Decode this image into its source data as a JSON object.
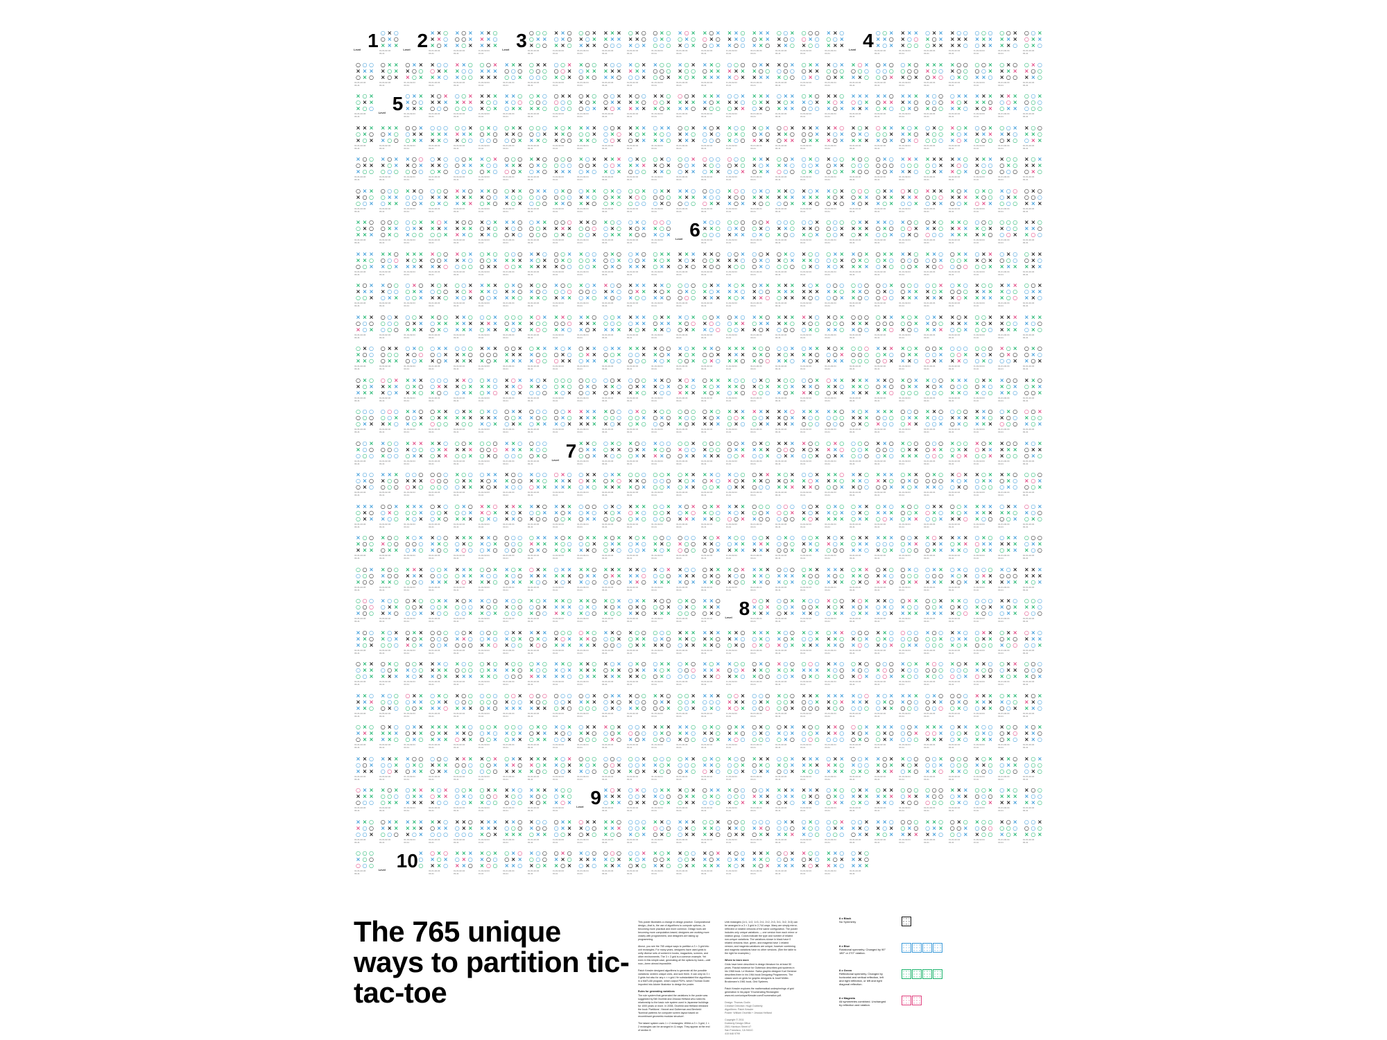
{
  "title": "The 765 unique ways to partition tic-tac-toe",
  "columns": [
    "This poster illustrates a change in design practice. Computational design—that is, the use of algorithms to compute options—is becoming more practical and more common. Design tools are becoming more computation-based; designers are working more closely with programmers; and designers are taking up programming.",
    "Above, you see the 765 unique ways to partition a 3 × 3 grid into unit rectangles. For many years, designers have used grids to unify diverse sets of content in books, magazines, screens, and other environments. The 3 × 3 grid is a common example. Yet even in this simple case, generating all the options by hand—until now—been almost impossible.",
    "Patch Kessler designed algorithms to generate all the possible variations: sixteen unique ones, and sum them. It can only do 3 × 3 grids but also for any n × n grid. He substantiated the algorithms in a MATLAB program, which output PDFs, which Thomas Godin imported into Adobe Illustrator to design the poster.",
    "Rules for generating variations",
    "The rule system that generated the variations in the poster was suggested by Bill Orcehild and Jessica Helfand who noted its relationship to the basic rule system used in Japanese buildings for 1000 years or more. In 2008, Orcehild and Helfand released the book 'Partitions'. Hexnet and Gutterman and Benheld: 'Nominal patterns for computer screen layout based on recombinant geometric modular structure'.",
    "The tatami system uses 1 × 2 rectangles. Within a 3 × 3 grid, 1 × 2 rectangles can be arranged in 11 ways. They appear at the end of section 8.",
    "Unit rectangles (1×1, 1×2, 1×3, 2×1, 2×2, 2×3, 3×1, 3×2, 3×3) can be arranged in a 3 × 3 grid in 2,744 ways. Many are simply mirror-reflected or rotated versions of the same configuration. The poster includes only unique variations — one version from each mirror or rotation group. Colors indicate the type and number of related non-unique variations. The variations shown in black have 0 related versions; blue, green, and magenta have 1 related version; and magenta variations are unique; however combining and magenta variations have no other versions. (See the table to the right for examples.)",
    "Where to learn more",
    "Grids have been described in design literature for at least 50 years. Fractal evidence for Gutterson describes grid systems in his 1968 book. Le Modulor: Swiss graphic designer Karl Gerstner describes them in his 1964 book Designing Programmes. The classic work on grids for graphic designers is Josef Müller-Brockmann's 1981 book, Grid Systems.",
    "Patch Kessler explores the mathematical underpinnings of grid generation in his paper 'Enumerating Rectangles' www.exi.com/unique/Kessler.com/Enumeration.pdf.",
    "Design: Thomas Godin\nCreative Direction: Hugh Dubberly\nAlgorithms: Patch Kessler\nPoster: William Orcehild + Jessica Helfand",
    "Copyright © 2011\nDubberly Design Office\n2501 Harrison Street #7\nSan Francisco, CA 94110\n415 648 9799"
  ],
  "legend": [
    {
      "title": "8 x Black",
      "desc": "No Symmetry",
      "color": "#000000"
    },
    {
      "title": "8 x Blue",
      "desc": "Rotational symmetry. Changed by 90° 180° or 270° rotation.",
      "color": "#3a9ad9"
    },
    {
      "title": "8 x Green",
      "desc": "Reflectional symmetry. Changed by horizontal and vertical reflection, left and right reflection, or left and right diagonal reflection.",
      "color": "#19b36b"
    },
    {
      "title": "8 x Magenta",
      "desc": "All symmetries combined. Unchanged by reflection and rotation.",
      "color": "#e0407e"
    }
  ],
  "level_label": "Level",
  "levels": [
    "1",
    "2",
    "3",
    "4",
    "5",
    "6",
    "7",
    "8",
    "9",
    "10"
  ],
  "code_line1": "01-01-02-04",
  "code_line2": "03-41",
  "colors": {
    "black": "#111111",
    "blue": "#3a9ad9",
    "green": "#19b36b",
    "magenta": "#e0407e"
  }
}
